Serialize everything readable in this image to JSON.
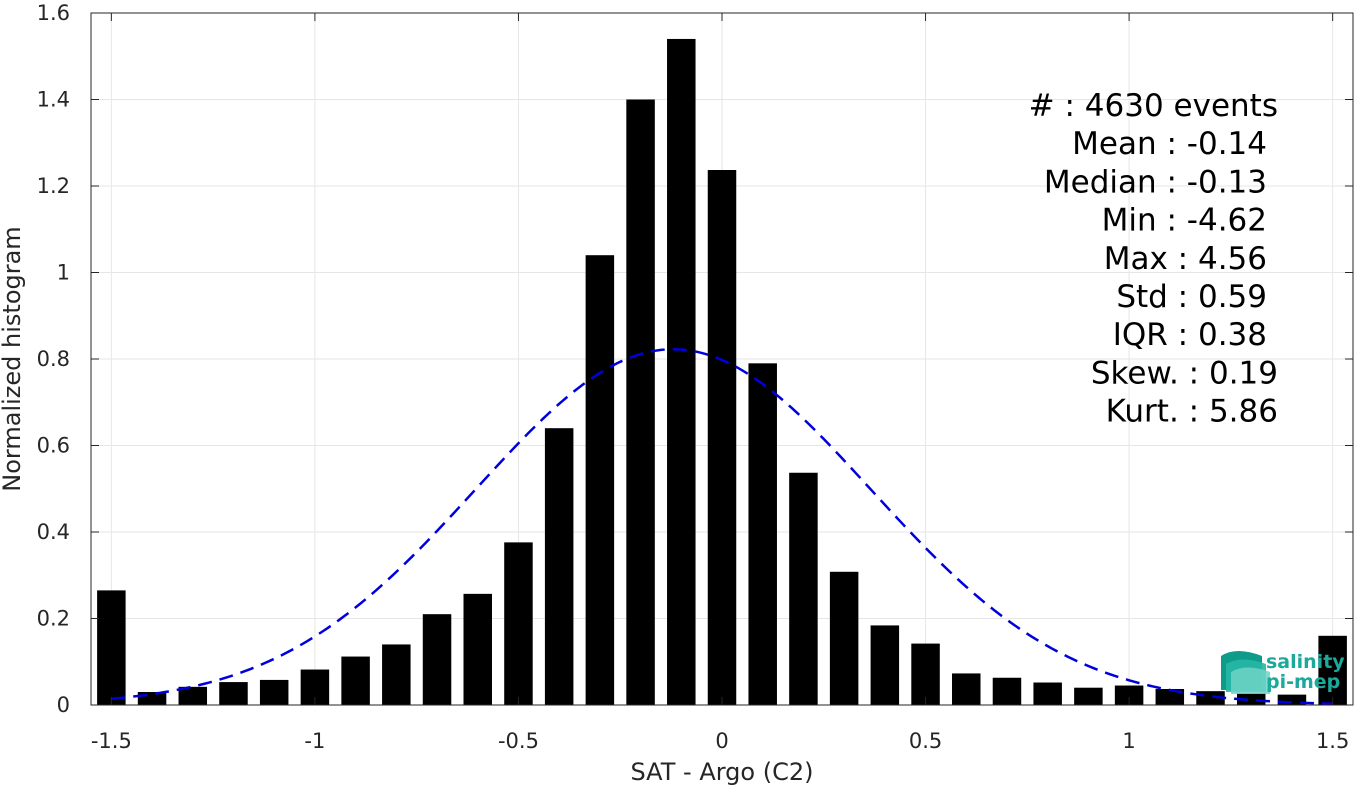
{
  "chart_data": {
    "type": "bar",
    "xlabel": "SAT - Argo (C2)",
    "ylabel": "Normalized histogram",
    "xlim": [
      -1.55,
      1.55
    ],
    "ylim": [
      0,
      1.6
    ],
    "xticks": [
      -1.5,
      -1,
      -0.5,
      0,
      0.5,
      1,
      1.5
    ],
    "xtick_labels": [
      "-1.5",
      "-1",
      "-0.5",
      "0",
      "0.5",
      "1",
      "1.5"
    ],
    "yticks": [
      0,
      0.2,
      0.4,
      0.6,
      0.8,
      1,
      1.2,
      1.4,
      1.6
    ],
    "ytick_labels": [
      "0",
      "0.2",
      "0.4",
      "0.6",
      "0.8",
      "1",
      "1.2",
      "1.4",
      "1.6"
    ],
    "grid": true,
    "bar_width": 0.07,
    "bar_color": "#000000",
    "bars": {
      "x": [
        -1.5,
        -1.4,
        -1.3,
        -1.2,
        -1.1,
        -1.0,
        -0.9,
        -0.8,
        -0.7,
        -0.6,
        -0.5,
        -0.4,
        -0.3,
        -0.2,
        -0.1,
        0.0,
        0.1,
        0.2,
        0.3,
        0.4,
        0.5,
        0.6,
        0.7,
        0.8,
        0.9,
        1.0,
        1.1,
        1.2,
        1.3,
        1.4,
        1.5
      ],
      "values": [
        0.265,
        0.03,
        0.042,
        0.053,
        0.058,
        0.082,
        0.112,
        0.14,
        0.21,
        0.257,
        0.376,
        0.64,
        1.04,
        1.4,
        1.54,
        1.237,
        0.79,
        0.537,
        0.308,
        0.184,
        0.142,
        0.073,
        0.063,
        0.052,
        0.04,
        0.045,
        0.037,
        0.032,
        0.027,
        0.024,
        0.16
      ]
    },
    "fit_curve": {
      "style": "dashed",
      "color": "#0000dd",
      "mean": -0.12,
      "std": 0.485,
      "x_range": [
        -1.5,
        1.5
      ]
    },
    "stats": {
      "lines": [
        "#  : 4630 events",
        "Mean : -0.14",
        "Median : -0.13",
        "Min : -4.62",
        "Max : 4.56",
        "Std : 0.59",
        "IQR : 0.38",
        "Skew. : 0.19",
        "Kurt. : 5.86"
      ],
      "position": "top-right"
    },
    "logo": {
      "line1": "salinity",
      "line2": "pi-mep",
      "color": "#1aa99a",
      "position": "bottom-right"
    }
  }
}
